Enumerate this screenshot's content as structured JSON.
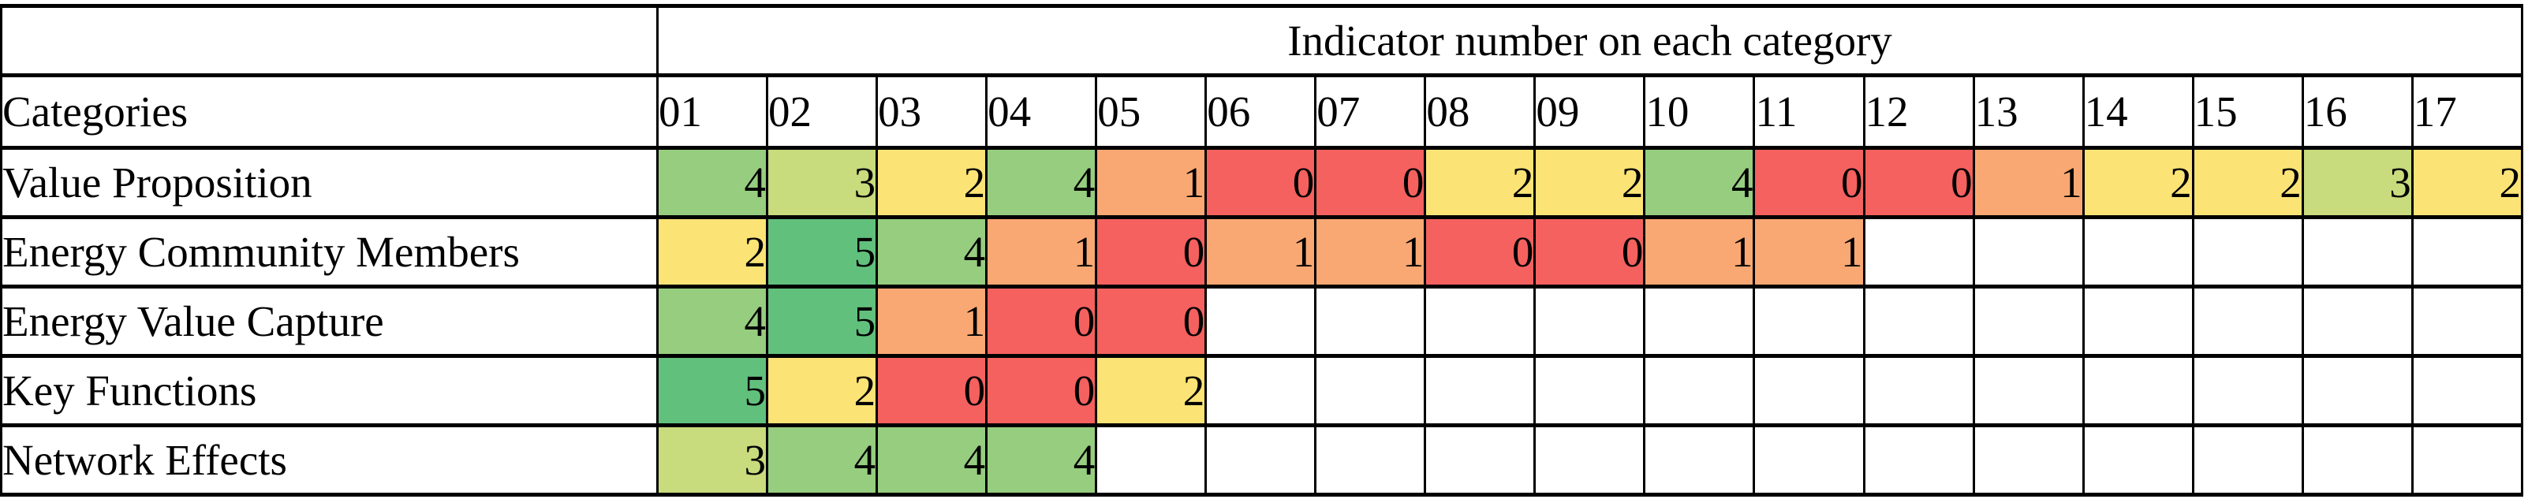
{
  "table": {
    "merged_header": "Indicator number on each category",
    "corner_header": "Categories",
    "column_headers": [
      "01",
      "02",
      "03",
      "04",
      "05",
      "06",
      "07",
      "08",
      "09",
      "10",
      "11",
      "12",
      "13",
      "14",
      "15",
      "16",
      "17"
    ],
    "num_columns": 17,
    "value_colors": {
      "0": "#F4615E",
      "1": "#FAA873",
      "2": "#FBE376",
      "3": "#C8DB7D",
      "4": "#96CD7F",
      "5": "#62C07D"
    },
    "rows": [
      {
        "label": "Value Proposition",
        "values": [
          4,
          3,
          2,
          4,
          1,
          0,
          0,
          2,
          2,
          4,
          0,
          0,
          1,
          2,
          2,
          3,
          2
        ]
      },
      {
        "label": "Energy Community Members",
        "values": [
          2,
          5,
          4,
          1,
          0,
          1,
          1,
          0,
          0,
          1,
          1
        ]
      },
      {
        "label": "Energy Value Capture",
        "values": [
          4,
          5,
          1,
          0,
          0
        ]
      },
      {
        "label": "Key Functions",
        "values": [
          5,
          2,
          0,
          0,
          2
        ]
      },
      {
        "label": "Network Effects",
        "values": [
          3,
          4,
          4,
          4
        ]
      }
    ]
  },
  "chart_data": {
    "type": "heatmap",
    "title": "Indicator number on each category",
    "x_labels": [
      "01",
      "02",
      "03",
      "04",
      "05",
      "06",
      "07",
      "08",
      "09",
      "10",
      "11",
      "12",
      "13",
      "14",
      "15",
      "16",
      "17"
    ],
    "y_labels": [
      "Value Proposition",
      "Energy Community Members",
      "Energy Value Capture",
      "Key Functions",
      "Network Effects"
    ],
    "values": [
      [
        4,
        3,
        2,
        4,
        1,
        0,
        0,
        2,
        2,
        4,
        0,
        0,
        1,
        2,
        2,
        3,
        2
      ],
      [
        2,
        5,
        4,
        1,
        0,
        1,
        1,
        0,
        0,
        1,
        1,
        null,
        null,
        null,
        null,
        null,
        null
      ],
      [
        4,
        5,
        1,
        0,
        0,
        null,
        null,
        null,
        null,
        null,
        null,
        null,
        null,
        null,
        null,
        null,
        null
      ],
      [
        5,
        2,
        0,
        0,
        2,
        null,
        null,
        null,
        null,
        null,
        null,
        null,
        null,
        null,
        null,
        null,
        null
      ],
      [
        3,
        4,
        4,
        4,
        null,
        null,
        null,
        null,
        null,
        null,
        null,
        null,
        null,
        null,
        null,
        null,
        null
      ]
    ],
    "value_range": [
      0,
      5
    ],
    "color_scale": [
      {
        "value": 0,
        "color": "#F4615E"
      },
      {
        "value": 1,
        "color": "#FAA873"
      },
      {
        "value": 2,
        "color": "#FBE376"
      },
      {
        "value": 3,
        "color": "#C8DB7D"
      },
      {
        "value": 4,
        "color": "#96CD7F"
      },
      {
        "value": 5,
        "color": "#62C07D"
      }
    ],
    "legend_position": "none",
    "grid": true
  }
}
